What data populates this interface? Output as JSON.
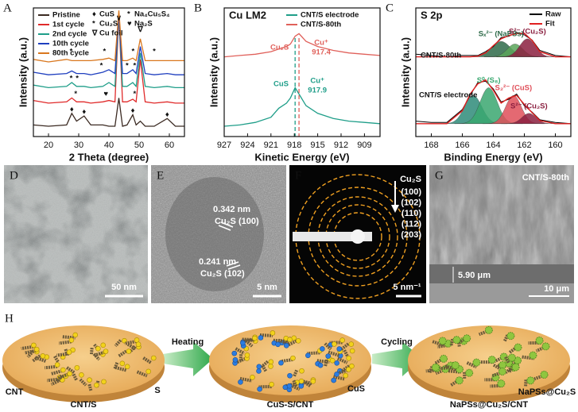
{
  "chart_data": [
    {
      "type": "line",
      "panel_label": "A",
      "xlabel": "2 Theta (degree)",
      "ylabel": "Intensity (a.u.)",
      "xlim": [
        15,
        65
      ],
      "xticks": [
        20,
        30,
        40,
        50,
        60
      ],
      "ylim": [
        0,
        100
      ],
      "x": [
        15,
        20,
        26,
        27.7,
        29.3,
        31.8,
        34,
        38,
        40,
        42,
        43.3,
        44.5,
        46,
        47.9,
        49,
        50.4,
        52,
        55,
        59.3,
        62,
        65
      ],
      "series": [
        {
          "name": "Pristine",
          "color": "#3b2a22",
          "values": [
            9,
            8,
            9,
            18,
            12,
            16,
            9,
            9,
            8,
            8,
            30,
            8,
            9,
            17,
            9,
            12,
            8,
            8,
            14,
            8,
            8
          ]
        },
        {
          "name": "1st cycle",
          "color": "#e02a2a",
          "values": [
            28,
            26,
            27,
            30,
            27,
            27,
            26,
            27,
            28,
            27,
            95,
            27,
            27,
            29,
            27,
            60,
            27,
            26,
            27,
            26,
            26
          ]
        },
        {
          "name": "2nd cycle",
          "color": "#1f9e89",
          "values": [
            40,
            38,
            39,
            42,
            39,
            39,
            38,
            39,
            42,
            39,
            95,
            39,
            39,
            42,
            39,
            65,
            39,
            38,
            39,
            38,
            38
          ]
        },
        {
          "name": "10th cycle",
          "color": "#1f3fbf",
          "values": [
            50,
            48,
            49,
            51,
            49,
            49,
            48,
            50,
            52,
            49,
            95,
            49,
            49,
            52,
            49,
            70,
            49,
            48,
            49,
            48,
            48
          ]
        },
        {
          "name": "80th cycle",
          "color": "#d9771e",
          "values": [
            60,
            58,
            60,
            59,
            59,
            59,
            59,
            60,
            61,
            59,
            98,
            59,
            59,
            61,
            59,
            76,
            59,
            59,
            59,
            59,
            59
          ]
        }
      ],
      "legend": "upper left",
      "phase_legend": [
        {
          "symbol": "♦",
          "label": "CuS",
          "color": "#111111"
        },
        {
          "symbol": "*",
          "label": "Na₄Cu₅S₄",
          "color": "#e040c0"
        },
        {
          "symbol": "*",
          "label": "Cu₂S",
          "color": "#4a90e2"
        },
        {
          "symbol": "♥",
          "label": "Na₂S",
          "color": "#e02020"
        },
        {
          "symbol": "∇",
          "label": "Cu foil",
          "color": "#111111"
        }
      ],
      "markers": [
        {
          "x": 27.7,
          "y": 21,
          "symbol": "♦",
          "color": "#111111"
        },
        {
          "x": 31.8,
          "y": 19,
          "symbol": "♦",
          "color": "#111111"
        },
        {
          "x": 47.9,
          "y": 20,
          "symbol": "♦",
          "color": "#111111"
        },
        {
          "x": 59.3,
          "y": 17,
          "symbol": "♦",
          "color": "#111111"
        },
        {
          "x": 29,
          "y": 33,
          "symbol": "*",
          "color": "#e040c0"
        },
        {
          "x": 39,
          "y": 33,
          "symbol": "♥",
          "color": "#e02020"
        },
        {
          "x": 48.5,
          "y": 33,
          "symbol": "*",
          "color": "#e040c0"
        },
        {
          "x": 27.5,
          "y": 45,
          "symbol": "*",
          "color": "#4a90e2"
        },
        {
          "x": 29.5,
          "y": 45,
          "symbol": "*",
          "color": "#e040c0"
        },
        {
          "x": 37.5,
          "y": 55,
          "symbol": "*",
          "color": "#4a90e2"
        },
        {
          "x": 46,
          "y": 55,
          "symbol": "*",
          "color": "#4a90e2"
        },
        {
          "x": 48.5,
          "y": 55,
          "symbol": "*",
          "color": "#4a90e2"
        },
        {
          "x": 27.5,
          "y": 66,
          "symbol": "*",
          "color": "#4a90e2"
        },
        {
          "x": 38.5,
          "y": 66,
          "symbol": "*",
          "color": "#4a90e2"
        },
        {
          "x": 48,
          "y": 66,
          "symbol": "*",
          "color": "#4a90e2"
        },
        {
          "x": 55,
          "y": 66,
          "symbol": "*",
          "color": "#4a90e2"
        },
        {
          "x": 43.3,
          "y": 92,
          "symbol": "∨",
          "color": "#111111"
        },
        {
          "x": 50.4,
          "y": 83,
          "symbol": "∇",
          "color": "#111111"
        }
      ]
    },
    {
      "type": "line",
      "panel_label": "B",
      "title": "Cu LM2",
      "xlabel": "Kinetic Energy (eV)",
      "ylabel": "Intensity (a.u.)",
      "xlim": [
        927,
        907
      ],
      "xticks": [
        927,
        924,
        921,
        918,
        915,
        912,
        909
      ],
      "ylim": [
        0,
        100
      ],
      "x": [
        927,
        925,
        923,
        921,
        920,
        919,
        918.5,
        917.9,
        917.4,
        916.5,
        915,
        913,
        911,
        909,
        907
      ],
      "series": [
        {
          "name": "CNT/S electrode",
          "color": "#1f9e89",
          "values": [
            8,
            9,
            11,
            15,
            22,
            26,
            30,
            38,
            33,
            24,
            18,
            14,
            12,
            11,
            10
          ]
        },
        {
          "name": "CNT/S-80th",
          "color": "#e0605a",
          "values": [
            62,
            63,
            64,
            66,
            68,
            70,
            72,
            78,
            80,
            74,
            70,
            67,
            65,
            64,
            63
          ]
        }
      ],
      "legend": "upper right",
      "annotations": [
        {
          "text": "Cu₂S",
          "color": "#e0605a"
        },
        {
          "text": "CuS",
          "color": "#1f9e89"
        }
      ],
      "peaks": [
        {
          "label": "Cu⁺",
          "value": 917.4,
          "color": "#e0605a"
        },
        {
          "label": "Cu⁺",
          "value": 917.9,
          "color": "#1f9e89"
        }
      ]
    },
    {
      "type": "xps",
      "panel_label": "C",
      "title": "S 2p",
      "xlabel": "Binding Energy (eV)",
      "ylabel": "Intensity (a.u.)",
      "xlim": [
        169,
        159
      ],
      "xticks": [
        168,
        166,
        164,
        162,
        160
      ],
      "ylim": [
        0,
        100
      ],
      "x": [
        169,
        168,
        167,
        166,
        165.5,
        165,
        164.5,
        164,
        163.5,
        163,
        162.5,
        162,
        161.5,
        161,
        160,
        159
      ],
      "legend": [
        {
          "name": "Raw",
          "color": "#000000"
        },
        {
          "name": "Fit",
          "color": "#e02020"
        }
      ],
      "samples": [
        {
          "label": "CNT/S-80th",
          "raw": [
            64,
            63,
            62,
            63,
            63,
            63,
            66,
            70,
            77,
            78,
            81,
            79,
            75,
            67,
            63,
            62
          ],
          "fit": [
            62,
            62,
            62,
            62,
            62,
            62.5,
            65,
            70.7,
            76,
            78.6,
            80,
            80.3,
            74.6,
            66,
            62,
            62
          ],
          "components": [
            {
              "center": 163.5,
              "height": 12,
              "width": 0.6,
              "color": "#2f6b4a",
              "label": "Sₓ²⁻ (NaPSs)"
            },
            {
              "center": 162.6,
              "height": 10,
              "width": 0.5,
              "color": "#5aa55a"
            },
            {
              "center": 161.8,
              "height": 14,
              "width": 0.5,
              "color": "#8b2040",
              "label": "S²⁻ (Cu₂S)"
            }
          ]
        },
        {
          "label": "CNT/S electrode",
          "raw": [
            12,
            11,
            11,
            21,
            32,
            42,
            43,
            37,
            27,
            29,
            33,
            24,
            19,
            13,
            11,
            10
          ],
          "fit": [
            10,
            10,
            10,
            20,
            33,
            41,
            44,
            36,
            26,
            30,
            32,
            25,
            18.5,
            12.4,
            10,
            10
          ],
          "components": [
            {
              "center": 165.3,
              "height": 22,
              "width": 0.55,
              "color": "#2e8b7a"
            },
            {
              "center": 164.3,
              "height": 28,
              "width": 0.55,
              "color": "#3aa870",
              "label": "S⁰ (S₈)"
            },
            {
              "center": 162.7,
              "height": 22,
              "width": 0.5,
              "color": "#e0505a",
              "label": "S₂²⁻ (CuS)"
            },
            {
              "center": 161.7,
              "height": 8,
              "width": 0.45,
              "color": "#8b2040",
              "label": "S²⁻ (Cu₂S)"
            }
          ]
        }
      ]
    }
  ],
  "images": [
    {
      "panel_label": "D",
      "scale_bar": "50 nm"
    },
    {
      "panel_label": "E",
      "scale_bar": "5 nm",
      "annotations": [
        "0.342 nm",
        "Cu₂S (100)",
        "0.241 nm",
        "Cu₂S (102)"
      ]
    },
    {
      "panel_label": "F",
      "scale_bar": "5 nm⁻¹",
      "title": "Cu₂S",
      "rings": [
        "(100)",
        "(102)",
        "(110)",
        "(112)",
        "(203)"
      ]
    },
    {
      "panel_label": "G",
      "title": "CNT/S-80th",
      "annotations": [
        "5.90 μm"
      ],
      "scale_bar": "10 μm"
    }
  ],
  "schematic": {
    "panel_label": "H",
    "steps": [
      {
        "label": "CNT/S",
        "callouts": [
          "CNT",
          "S"
        ]
      },
      {
        "label": "CuS-S/CNT",
        "callouts": [
          "CuS"
        ]
      },
      {
        "label": "NaPSs@Cu₂S/CNT",
        "callouts": [
          "NaPSs@Cu₂S"
        ]
      }
    ],
    "arrows": [
      "Heating",
      "Cycling"
    ]
  }
}
